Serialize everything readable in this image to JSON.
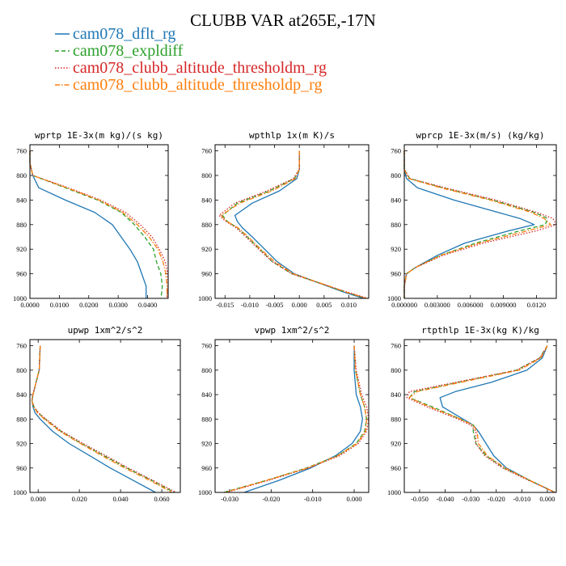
{
  "figure_title": "CLUBB VAR at265E,-17N",
  "legend": [
    {
      "label": "cam078_dflt_rg",
      "color": "#1f77b4",
      "dash": "solid"
    },
    {
      "label": "cam078_expldiff",
      "color": "#2ca02c",
      "dash": "dashed"
    },
    {
      "label": "cam078_clubb_altitude_thresholdm_rg",
      "color": "#d62728",
      "dash": "dotted"
    },
    {
      "label": "cam078_clubb_altitude_thresholdp_rg",
      "color": "#ff7f0e",
      "dash": "dashdot"
    }
  ],
  "chart_data": [
    {
      "type": "line",
      "title": "wprtp  1E-3x(m kg)/(s kg)",
      "xlim": [
        0,
        0.047
      ],
      "ylim": [
        1000,
        750
      ],
      "ylabel": "",
      "xlabel": "",
      "xticks": [
        0,
        0.01,
        0.02,
        0.03,
        0.04
      ],
      "xtick_labels": [
        "0.0000",
        "0.0100",
        "0.0200",
        "0.0300",
        "0.0400"
      ],
      "yticks": [
        760,
        800,
        840,
        880,
        920,
        960,
        1000
      ],
      "ytick_labels": [
        "760",
        "800",
        "840",
        "880",
        "920",
        "960",
        "1000"
      ],
      "y": [
        760,
        780,
        800,
        820,
        840,
        860,
        880,
        900,
        920,
        940,
        960,
        980,
        990,
        1000
      ],
      "series": [
        {
          "name": "cam078_dflt_rg",
          "values": [
            0,
            0,
            0.001,
            0.003,
            0.012,
            0.022,
            0.028,
            0.031,
            0.034,
            0.0365,
            0.038,
            0.0395,
            0.0395,
            0.0395
          ]
        },
        {
          "name": "cam078_expldiff",
          "values": [
            0,
            0,
            0.001,
            0.012,
            0.023,
            0.031,
            0.0355,
            0.039,
            0.042,
            0.043,
            0.0445,
            0.045,
            0.0448,
            0.0445
          ]
        },
        {
          "name": "cam078_clubb_altitude_thresholdm_rg",
          "values": [
            0,
            0,
            0.001,
            0.013,
            0.024,
            0.0325,
            0.0375,
            0.0415,
            0.044,
            0.046,
            0.0468,
            0.047,
            0.0468,
            0.0465
          ]
        },
        {
          "name": "cam078_clubb_altitude_thresholdp_rg",
          "values": [
            0,
            0,
            0.001,
            0.0125,
            0.0235,
            0.0315,
            0.0365,
            0.0405,
            0.0435,
            0.0452,
            0.0462,
            0.0466,
            0.0466,
            0.0466
          ]
        }
      ]
    },
    {
      "type": "line",
      "title": "wpthlp  1x(m K)/s",
      "xlim": [
        -0.017,
        0.014
      ],
      "ylim": [
        1000,
        750
      ],
      "ylabel": "",
      "xlabel": "",
      "xticks": [
        -0.015,
        -0.01,
        -0.005,
        0,
        0.005,
        0.01
      ],
      "xtick_labels": [
        "-0.015",
        "-0.010",
        "-0.005",
        "0.000",
        "0.005",
        "0.010"
      ],
      "yticks": [
        760,
        800,
        840,
        880,
        920,
        960,
        1000
      ],
      "ytick_labels": [
        "760",
        "800",
        "840",
        "880",
        "920",
        "960",
        "1000"
      ],
      "y": [
        760,
        790,
        805,
        825,
        845,
        865,
        875,
        885,
        900,
        920,
        940,
        960,
        975,
        990,
        1000
      ],
      "series": [
        {
          "name": "cam078_dflt_rg",
          "values": [
            0,
            0,
            -0.0005,
            -0.004,
            -0.0095,
            -0.013,
            -0.0125,
            -0.0115,
            -0.0095,
            -0.007,
            -0.0045,
            -0.001,
            0.004,
            0.009,
            0.013
          ]
        },
        {
          "name": "cam078_expldiff",
          "values": [
            0,
            0,
            -0.001,
            -0.006,
            -0.0125,
            -0.0155,
            -0.0145,
            -0.0125,
            -0.0105,
            -0.008,
            -0.0055,
            -0.0015,
            0.004,
            0.0095,
            0.0135
          ]
        },
        {
          "name": "cam078_clubb_altitude_thresholdm_rg",
          "values": [
            0,
            0,
            -0.0012,
            -0.0065,
            -0.013,
            -0.0162,
            -0.0148,
            -0.0128,
            -0.0108,
            -0.0082,
            -0.0055,
            -0.0015,
            0.004,
            0.0098,
            0.0138
          ]
        },
        {
          "name": "cam078_clubb_altitude_thresholdp_rg",
          "values": [
            0,
            0,
            -0.0008,
            -0.0055,
            -0.012,
            -0.0158,
            -0.0146,
            -0.0124,
            -0.0103,
            -0.0078,
            -0.005,
            -0.0012,
            0.0042,
            0.0095,
            0.0136
          ]
        }
      ]
    },
    {
      "type": "line",
      "title": "wprcp  1E-3x(m/s) (kg/kg)",
      "xlim": [
        0,
        0.0138
      ],
      "ylim": [
        1000,
        750
      ],
      "ylabel": "",
      "xlabel": "",
      "xticks": [
        0,
        0.003,
        0.006,
        0.009,
        0.012
      ],
      "xtick_labels": [
        "0.000000",
        "0.003000",
        "0.006000",
        "0.009000",
        "0.0120"
      ],
      "yticks": [
        760,
        800,
        840,
        880,
        920,
        960,
        1000
      ],
      "ytick_labels": [
        "760",
        "800",
        "840",
        "880",
        "920",
        "960",
        "1000"
      ],
      "y": [
        760,
        790,
        805,
        820,
        840,
        860,
        870,
        880,
        890,
        910,
        930,
        950,
        960,
        980,
        1000
      ],
      "series": [
        {
          "name": "cam078_dflt_rg",
          "values": [
            0,
            0,
            0.0002,
            0.0012,
            0.0045,
            0.0085,
            0.0105,
            0.0118,
            0.0095,
            0.0055,
            0.003,
            0.001,
            0.0002,
            0,
            0
          ]
        },
        {
          "name": "cam078_expldiff",
          "values": [
            0,
            0,
            0.0005,
            0.0035,
            0.008,
            0.0118,
            0.013,
            0.0128,
            0.0105,
            0.0065,
            0.0033,
            0.001,
            0.0002,
            0,
            0
          ]
        },
        {
          "name": "cam078_clubb_altitude_thresholdm_rg",
          "values": [
            0,
            0,
            0.0005,
            0.0037,
            0.0083,
            0.012,
            0.0135,
            0.0138,
            0.012,
            0.0072,
            0.0035,
            0.001,
            0.0002,
            0,
            0
          ]
        },
        {
          "name": "cam078_clubb_altitude_thresholdp_rg",
          "values": [
            0,
            0,
            0.0004,
            0.0033,
            0.0078,
            0.0115,
            0.0127,
            0.0133,
            0.0112,
            0.0068,
            0.0033,
            0.001,
            0.0002,
            0,
            0
          ]
        }
      ]
    },
    {
      "type": "line",
      "title": "upwp  1xm^2/s^2",
      "xlim": [
        -0.004,
        0.069
      ],
      "ylim": [
        1000,
        750
      ],
      "ylabel": "",
      "xlabel": "",
      "xticks": [
        0,
        0.02,
        0.04,
        0.06
      ],
      "xtick_labels": [
        "0.000",
        "0.020",
        "0.040",
        "0.060"
      ],
      "yticks": [
        760,
        800,
        840,
        880,
        920,
        960,
        1000
      ],
      "ytick_labels": [
        "760",
        "800",
        "840",
        "880",
        "920",
        "960",
        "1000"
      ],
      "y": [
        760,
        800,
        820,
        840,
        850,
        860,
        870,
        880,
        900,
        920,
        940,
        960,
        980,
        1000
      ],
      "series": [
        {
          "name": "cam078_dflt_rg",
          "values": [
            0.001,
            0.0005,
            -0.001,
            -0.0025,
            -0.003,
            -0.0025,
            -0.0015,
            0.001,
            0.007,
            0.015,
            0.025,
            0.035,
            0.046,
            0.057
          ]
        },
        {
          "name": "cam078_expldiff",
          "values": [
            0.001,
            0.0005,
            -0.001,
            -0.0025,
            -0.003,
            -0.002,
            0,
            0.0035,
            0.011,
            0.021,
            0.032,
            0.043,
            0.055,
            0.066
          ]
        },
        {
          "name": "cam078_clubb_altitude_thresholdm_rg",
          "values": [
            0.001,
            0.0005,
            -0.001,
            -0.0025,
            -0.003,
            -0.002,
            0.0003,
            0.0037,
            0.0115,
            0.0218,
            0.0328,
            0.0438,
            0.0555,
            0.067
          ]
        },
        {
          "name": "cam078_clubb_altitude_thresholdp_rg",
          "values": [
            0.001,
            0.0005,
            -0.001,
            -0.0025,
            -0.003,
            -0.0022,
            -0.0003,
            0.003,
            0.0105,
            0.0205,
            0.031,
            0.042,
            0.054,
            0.065
          ]
        }
      ]
    },
    {
      "type": "line",
      "title": "vpwp  1xm^2/s^2",
      "xlim": [
        -0.0335,
        0.0035
      ],
      "ylim": [
        1000,
        750
      ],
      "ylabel": "",
      "xlabel": "",
      "xticks": [
        -0.03,
        -0.02,
        -0.01,
        0
      ],
      "xtick_labels": [
        "-0.030",
        "-0.020",
        "-0.010",
        "0.000"
      ],
      "yticks": [
        760,
        800,
        840,
        880,
        920,
        960,
        1000
      ],
      "ytick_labels": [
        "760",
        "800",
        "840",
        "880",
        "920",
        "960",
        "1000"
      ],
      "y": [
        760,
        800,
        840,
        860,
        880,
        900,
        920,
        940,
        960,
        980,
        1000
      ],
      "series": [
        {
          "name": "cam078_dflt_rg",
          "values": [
            0,
            0,
            0.0005,
            0.0015,
            0.002,
            0.0015,
            -0.0005,
            -0.0045,
            -0.0105,
            -0.018,
            -0.0265
          ]
        },
        {
          "name": "cam078_expldiff",
          "values": [
            0,
            0.0003,
            0.0015,
            0.0025,
            0.003,
            0.0025,
            0.0005,
            -0.004,
            -0.0115,
            -0.021,
            -0.0315
          ]
        },
        {
          "name": "cam078_clubb_altitude_thresholdm_rg",
          "values": [
            0,
            0.0005,
            0.0018,
            0.003,
            0.0035,
            0.003,
            0.001,
            -0.0035,
            -0.011,
            -0.0205,
            -0.0308
          ]
        },
        {
          "name": "cam078_clubb_altitude_thresholdp_rg",
          "values": [
            0,
            0.0003,
            0.0015,
            0.0025,
            0.003,
            0.0027,
            0.0007,
            -0.004,
            -0.0112,
            -0.021,
            -0.0312
          ]
        }
      ]
    },
    {
      "type": "line",
      "title": "rtpthlp  1E-3x(kg K)/kg",
      "xlim": [
        -0.056,
        0.0035
      ],
      "ylim": [
        1000,
        750
      ],
      "ylabel": "",
      "xlabel": "",
      "xticks": [
        -0.05,
        -0.04,
        -0.03,
        -0.02,
        -0.01,
        0
      ],
      "xtick_labels": [
        "-0.050",
        "-0.040",
        "-0.030",
        "-0.020",
        "-0.010",
        "0.000"
      ],
      "yticks": [
        760,
        800,
        840,
        880,
        920,
        960,
        1000
      ],
      "ytick_labels": [
        "760",
        "800",
        "840",
        "880",
        "920",
        "960",
        "1000"
      ],
      "y": [
        760,
        780,
        800,
        820,
        835,
        845,
        860,
        880,
        890,
        900,
        920,
        940,
        960,
        980,
        1000
      ],
      "series": [
        {
          "name": "cam078_dflt_rg",
          "values": [
            0,
            -0.002,
            -0.008,
            -0.022,
            -0.036,
            -0.042,
            -0.041,
            -0.033,
            -0.029,
            -0.027,
            -0.024,
            -0.021,
            -0.016,
            -0.007,
            0.003
          ]
        },
        {
          "name": "cam078_expldiff",
          "values": [
            0,
            -0.003,
            -0.012,
            -0.035,
            -0.052,
            -0.054,
            -0.045,
            -0.034,
            -0.029,
            -0.029,
            -0.028,
            -0.024,
            -0.017,
            -0.007,
            0.003
          ]
        },
        {
          "name": "cam078_clubb_altitude_thresholdm_rg",
          "values": [
            0,
            -0.003,
            -0.012,
            -0.036,
            -0.054,
            -0.055,
            -0.047,
            -0.035,
            -0.03,
            -0.028,
            -0.028,
            -0.0245,
            -0.0175,
            -0.0075,
            0.003
          ]
        },
        {
          "name": "cam078_clubb_altitude_thresholdp_rg",
          "values": [
            0,
            -0.0025,
            -0.011,
            -0.034,
            -0.051,
            -0.054,
            -0.046,
            -0.034,
            -0.029,
            -0.0275,
            -0.027,
            -0.0235,
            -0.0165,
            -0.007,
            0.003
          ]
        }
      ]
    }
  ]
}
